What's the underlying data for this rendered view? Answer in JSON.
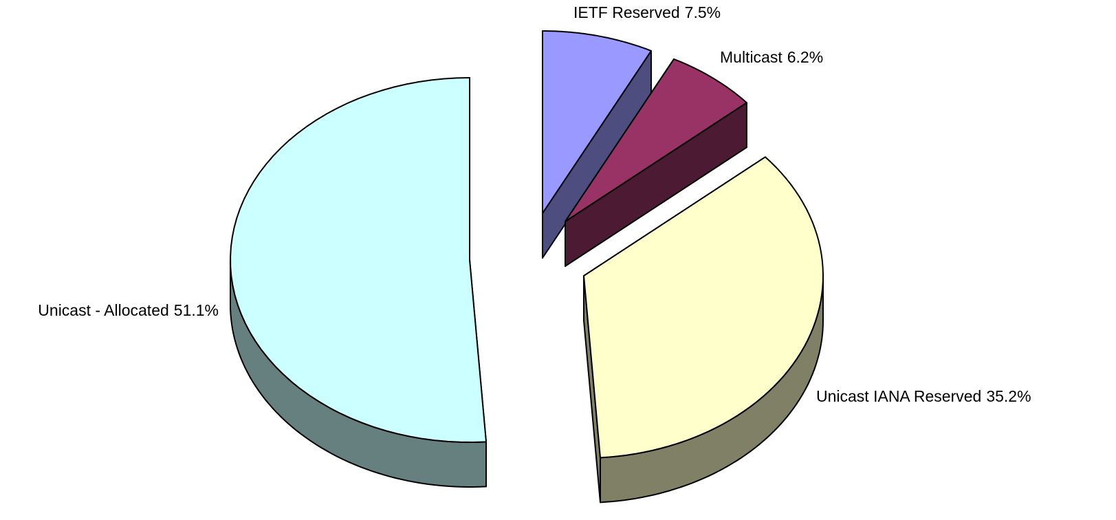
{
  "chart_data": {
    "type": "pie",
    "three_d": true,
    "categories": [
      "IETF Reserved",
      "Multicast",
      "Unicast IANA Reserved",
      "Unicast - Allocated"
    ],
    "values": [
      7.5,
      6.2,
      35.2,
      51.1
    ],
    "value_labels": [
      "7.5%",
      "6.2%",
      "35.2%",
      "51.1%"
    ],
    "colors": [
      "#9999ff",
      "#993366",
      "#ffffcc",
      "#ccffff"
    ]
  }
}
